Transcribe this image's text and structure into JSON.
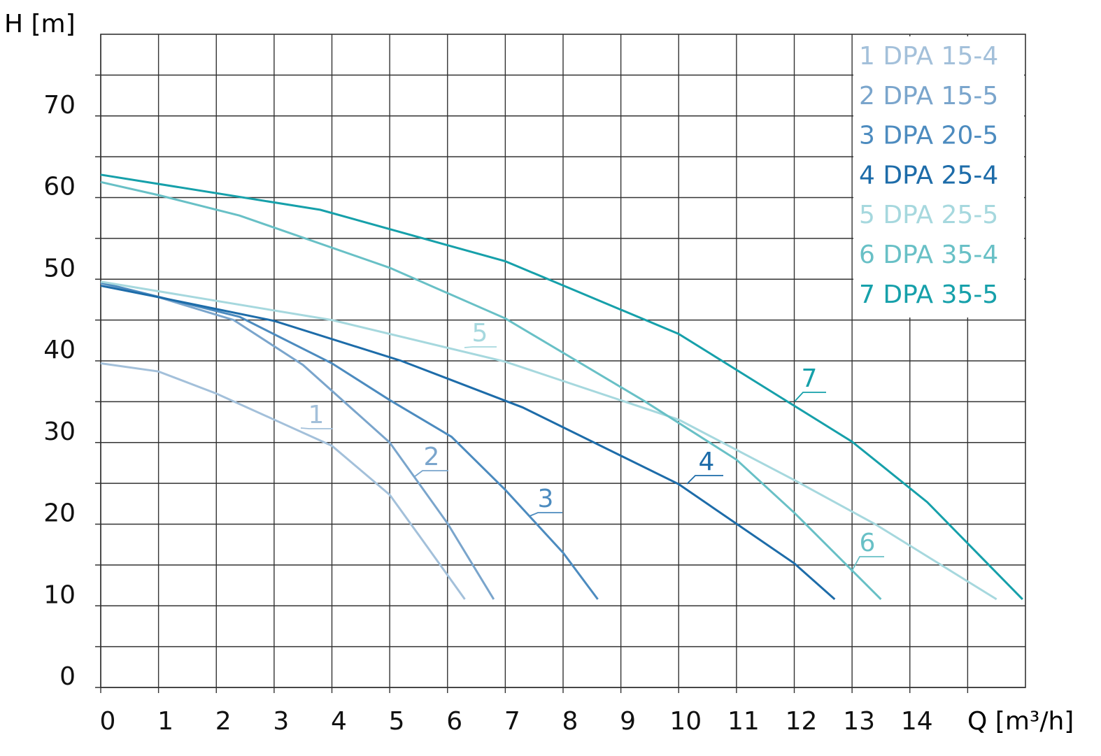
{
  "chart_data": {
    "type": "line",
    "y_label": "H [m]",
    "x_label": "Q [m³/h]",
    "xlim": [
      0,
      16
    ],
    "ylim": [
      0,
      80
    ],
    "xticks": [
      0,
      1,
      2,
      3,
      4,
      5,
      6,
      7,
      8,
      9,
      10,
      11,
      12,
      13,
      14,
      {
        "value": 15,
        "label": null
      }
    ],
    "yticks": [
      0,
      {
        "value": 5,
        "label": null
      },
      10,
      {
        "value": 15,
        "label": null
      },
      20,
      {
        "value": 25,
        "label": null
      },
      30,
      {
        "value": 35,
        "label": null
      },
      40,
      {
        "value": 45,
        "label": null
      },
      50,
      {
        "value": 55,
        "label": null
      },
      60,
      {
        "value": 65,
        "label": null
      },
      70,
      {
        "value": 75,
        "label": null
      }
    ],
    "grid": true,
    "legend": "top-right",
    "series": [
      {
        "name": "1 DPA 15-4",
        "label": "1",
        "color": "#a3c0da",
        "x": [
          0,
          1,
          2,
          3,
          4,
          5,
          5.5,
          6.3
        ],
        "values": [
          39.7,
          38.7,
          36.0,
          32.8,
          29.6,
          23.6,
          18.7,
          10.8
        ]
      },
      {
        "name": "2 DPA 15-5",
        "label": "2",
        "color": "#7aa5cc",
        "x": [
          0,
          1,
          2.3,
          3.5,
          5,
          6,
          6.8
        ],
        "values": [
          49.5,
          47.8,
          45.0,
          39.5,
          30.0,
          20.1,
          10.8
        ]
      },
      {
        "name": "3 DPA 20-5",
        "label": "3",
        "color": "#4c8bbf",
        "x": [
          0,
          2.4,
          4,
          5,
          6.07,
          7,
          8,
          8.6
        ],
        "values": [
          49.6,
          45.4,
          39.7,
          35.2,
          30.7,
          24.2,
          16.5,
          10.8
        ]
      },
      {
        "name": "4 DPA 25-4",
        "label": "4",
        "color": "#1d6ca9",
        "x": [
          0,
          1,
          3,
          5.2,
          7.3,
          10,
          12,
          12.7
        ],
        "values": [
          49.2,
          47.8,
          44.9,
          40.0,
          34.3,
          24.9,
          15.2,
          10.8
        ]
      },
      {
        "name": "5 DPA 25-5",
        "label": "5",
        "color": "#a6d8de",
        "x": [
          0,
          4,
          7,
          10,
          12,
          13.4,
          15.5
        ],
        "values": [
          49.7,
          45.0,
          39.9,
          32.8,
          25.4,
          20.0,
          10.8
        ]
      },
      {
        "name": "6 DPA 35-4",
        "label": "6",
        "color": "#68c0c6",
        "x": [
          0,
          1,
          2.4,
          5,
          7,
          9.4,
          11,
          12,
          13.5
        ],
        "values": [
          61.9,
          60.3,
          57.8,
          51.4,
          45.2,
          35.1,
          27.9,
          21.4,
          10.8
        ]
      },
      {
        "name": "7 DPA 35-5",
        "label": "7",
        "color": "#16a0aa",
        "x": [
          0,
          3.8,
          7,
          10,
          12,
          13,
          14.3,
          15.95
        ],
        "values": [
          62.8,
          58.5,
          52.2,
          43.3,
          34.5,
          30.1,
          22.7,
          10.8
        ]
      }
    ]
  }
}
